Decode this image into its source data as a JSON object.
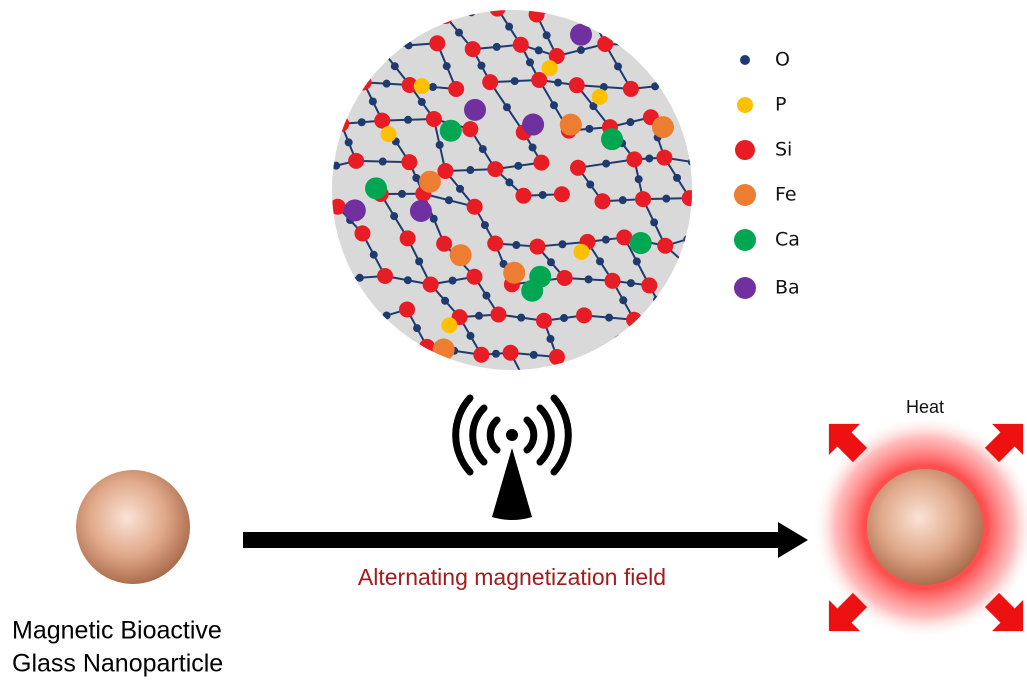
{
  "legend": {
    "items": [
      {
        "label": "O"
      },
      {
        "label": "P"
      },
      {
        "label": "Si"
      },
      {
        "label": "Fe"
      },
      {
        "label": "Ca"
      },
      {
        "label": "Ba"
      }
    ]
  },
  "heat_label": "Heat",
  "arrow_label": "Alternating magnetization field",
  "particle_label": {
    "lines": [
      "Magnetic Bioactive",
      "Glass Nanoparticle"
    ]
  }
}
